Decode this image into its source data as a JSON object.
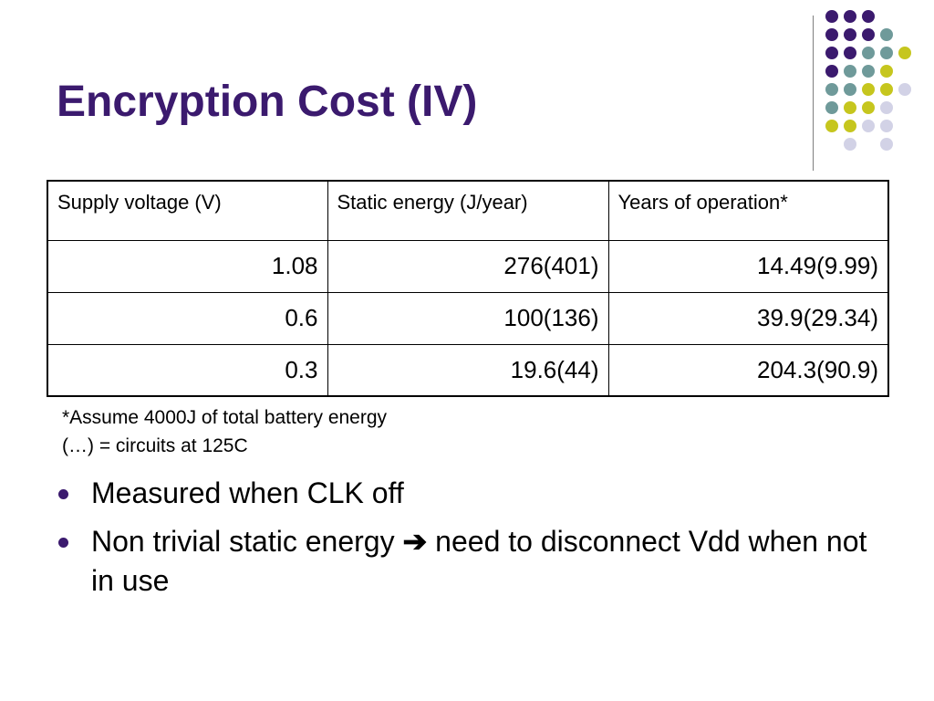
{
  "slide": {
    "title": "Encryption Cost (IV)"
  },
  "table": {
    "headers": [
      "Supply voltage (V)",
      "Static energy (J/year)",
      "Years of operation*"
    ],
    "rows": [
      [
        "1.08",
        "276(401)",
        "14.49(9.99)"
      ],
      [
        "0.6",
        "100(136)",
        "39.9(29.34)"
      ],
      [
        "0.3",
        "19.6(44)",
        "204.3(90.9)"
      ]
    ]
  },
  "notes": [
    "*Assume 4000J of total battery energy",
    "(…) = circuits at 125C"
  ],
  "bullets": [
    {
      "text": "Measured when CLK off"
    },
    {
      "before": "Non trivial static energy ",
      "arrow": "➔",
      "after": " need to disconnect Vdd when not in use"
    }
  ],
  "colors": {
    "title": "#3b1a6e",
    "purple": "#3b1a6e",
    "teal": "#6f9a9a",
    "yellow": "#c6c61e",
    "lavender": "#d2d2e6",
    "bullet": "#3b1a6e"
  },
  "decoration": {
    "dot_grid": [
      [
        "purple",
        "purple",
        "purple",
        "",
        ""
      ],
      [
        "purple",
        "purple",
        "purple",
        "teal",
        ""
      ],
      [
        "purple",
        "purple",
        "teal",
        "teal",
        "yellow"
      ],
      [
        "purple",
        "teal",
        "teal",
        "yellow",
        ""
      ],
      [
        "teal",
        "teal",
        "yellow",
        "yellow",
        "lavender"
      ],
      [
        "teal",
        "yellow",
        "yellow",
        "lavender",
        ""
      ],
      [
        "yellow",
        "yellow",
        "lavender",
        "lavender",
        ""
      ],
      [
        "",
        "lavender",
        "",
        "lavender",
        ""
      ]
    ]
  }
}
